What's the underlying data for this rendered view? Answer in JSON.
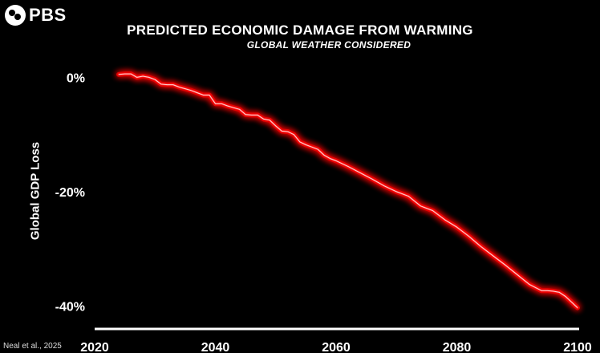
{
  "brand": {
    "logo_text": "PBS",
    "logo_icon": "pbs-head-icon"
  },
  "source": "Neal et al., 2025",
  "chart_data": {
    "type": "line",
    "title": "PREDICTED ECONOMIC DAMAGE FROM WARMING",
    "subtitle": "GLOBAL WEATHER CONSIDERED",
    "xlabel": "",
    "ylabel": "Global GDP Loss",
    "xlim": [
      2020,
      2100
    ],
    "ylim": [
      -44,
      3
    ],
    "x_ticks": [
      2020,
      2040,
      2060,
      2080,
      2100
    ],
    "x_tick_labels": [
      "2020",
      "2040",
      "2060",
      "2080",
      "2100"
    ],
    "y_ticks": [
      0,
      -20,
      -40
    ],
    "y_tick_labels": [
      "0%",
      "-20%",
      "-40%"
    ],
    "grid": false,
    "line_color": "#ff2a2a",
    "glow_color": "#ff0000",
    "series": [
      {
        "x": [
          2024,
          2025,
          2026,
          2027,
          2028,
          2029,
          2030,
          2031,
          2032,
          2033,
          2034,
          2035,
          2036,
          2037,
          2038,
          2039,
          2040,
          2041,
          2042,
          2043,
          2044,
          2045,
          2046,
          2047,
          2048,
          2049,
          2050,
          2051,
          2052,
          2053,
          2054,
          2055,
          2056,
          2057,
          2058,
          2059,
          2060,
          2062,
          2064,
          2066,
          2068,
          2070,
          2072,
          2074,
          2076,
          2078,
          2080,
          2082,
          2084,
          2086,
          2088,
          2090,
          2092,
          2094,
          2095,
          2096,
          2097,
          2098,
          2099,
          2100
        ],
        "values": [
          0.5,
          0.6,
          0.6,
          0.0,
          0.2,
          0.0,
          -0.4,
          -1.2,
          -1.3,
          -1.3,
          -1.7,
          -2.0,
          -2.3,
          -2.7,
          -3.1,
          -3.1,
          -4.6,
          -4.6,
          -5.0,
          -5.3,
          -5.6,
          -6.5,
          -6.6,
          -6.6,
          -7.3,
          -7.5,
          -8.5,
          -9.4,
          -9.5,
          -10.0,
          -11.3,
          -11.8,
          -12.2,
          -12.6,
          -13.6,
          -14.2,
          -14.6,
          -15.6,
          -16.7,
          -17.8,
          -19.0,
          -20.0,
          -20.8,
          -22.5,
          -23.3,
          -24.9,
          -26.2,
          -27.8,
          -29.6,
          -31.2,
          -32.8,
          -34.5,
          -36.2,
          -37.3,
          -37.3,
          -37.4,
          -37.6,
          -38.3,
          -39.3,
          -40.3
        ]
      }
    ]
  }
}
